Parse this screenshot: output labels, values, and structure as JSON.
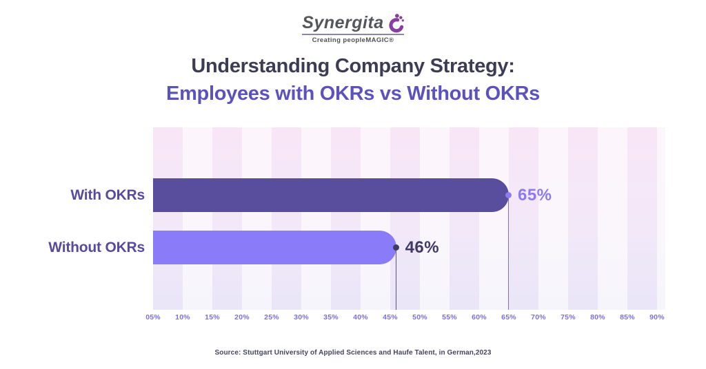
{
  "logo": {
    "brand": "Synergita",
    "tagline": "Creating peopleMAGIC®",
    "icon": "swirl-person-icon",
    "icon_color": "#8a3da0"
  },
  "title": {
    "line1": "Understanding Company Strategy:",
    "line2": "Employees with OKRs vs Without OKRs"
  },
  "source": "Source: Stuttgart University of Applied Sciences and Haufe Talent, in German,2023",
  "chart_data": {
    "type": "bar",
    "orientation": "horizontal",
    "title": "Understanding Company Strategy: Employees with OKRs vs Without OKRs",
    "categories": [
      "With OKRs",
      "Without OKRs"
    ],
    "values": [
      65,
      46
    ],
    "value_labels": [
      "65%",
      "46%"
    ],
    "x_ticks": [
      "05%",
      "10%",
      "15%",
      "20%",
      "25%",
      "30%",
      "35%",
      "40%",
      "45%",
      "50%",
      "55%",
      "60%",
      "65%",
      "70%",
      "75%",
      "80%",
      "85%",
      "90%"
    ],
    "axis_range": [
      5,
      91.4
    ],
    "xlabel": "",
    "ylabel": "",
    "legend": "none",
    "grid": "striped vertical bands, 5% intervals",
    "bar_colors": [
      "#594e9d",
      "#8a7cf8"
    ],
    "dot_colors": [
      "#8b7bf5",
      "#3f3a66"
    ],
    "value_label_colors": [
      "#8b7af0",
      "#3f3a66"
    ],
    "dropline_colors": [
      "#7c6ceb",
      "#5a5578"
    ],
    "category_label_color": "#584a9c"
  }
}
